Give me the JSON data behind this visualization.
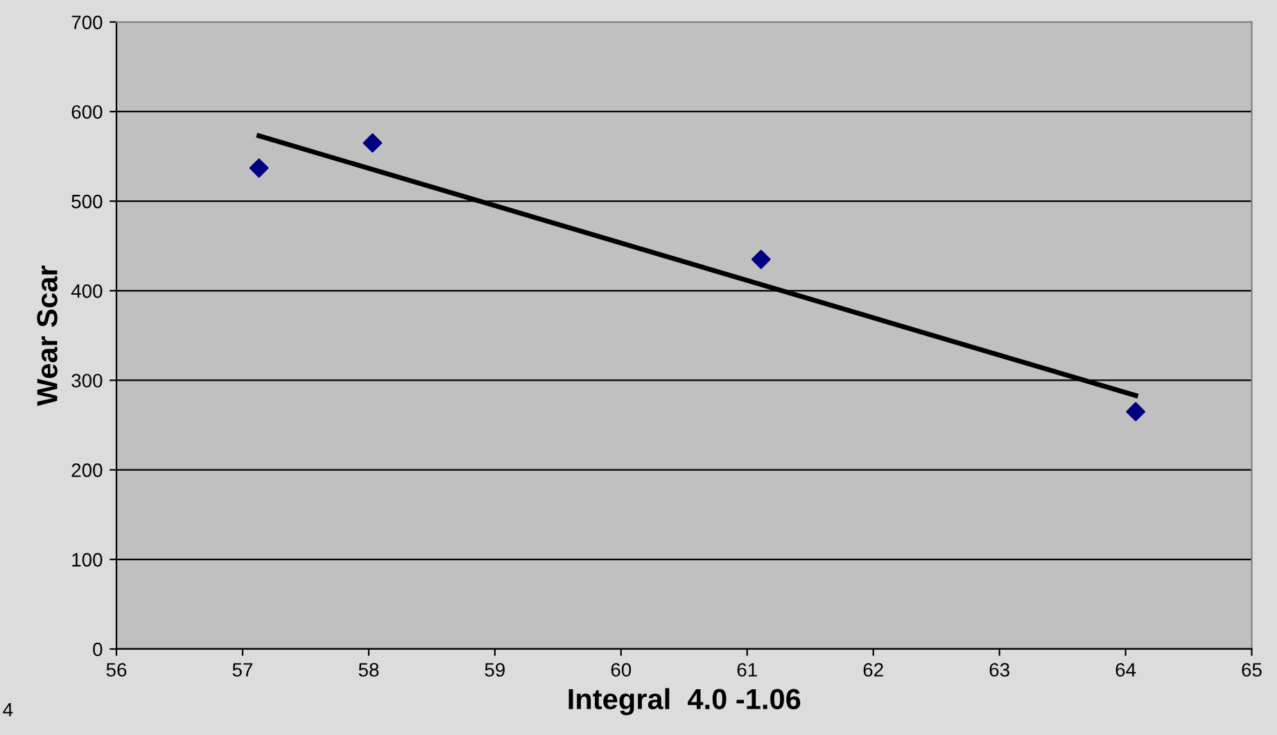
{
  "chart_data": {
    "type": "scatter",
    "xlabel": "Integral  4.0 -1.06",
    "ylabel": "Wear Scar",
    "series": [
      {
        "color": "#000080",
        "marker": "diamond",
        "x": [
          57.13,
          58.03,
          61.11,
          64.08
        ],
        "values": [
          537,
          565,
          435,
          265
        ]
      },
      {
        "type": "line",
        "color": "#000000",
        "marker": "none",
        "line_style": "solid",
        "x": [
          57.13,
          64.08
        ],
        "values": [
          573,
          283
        ]
      }
    ],
    "xlim": [
      56,
      65
    ],
    "xticks": [
      56,
      57,
      58,
      59,
      60,
      61,
      62,
      63,
      64,
      65
    ],
    "ylim": [
      0,
      700
    ],
    "yticks": [
      0,
      100,
      200,
      300,
      400,
      500,
      600,
      700
    ],
    "grid": "y",
    "legend": false,
    "annotations": [
      "4"
    ]
  }
}
